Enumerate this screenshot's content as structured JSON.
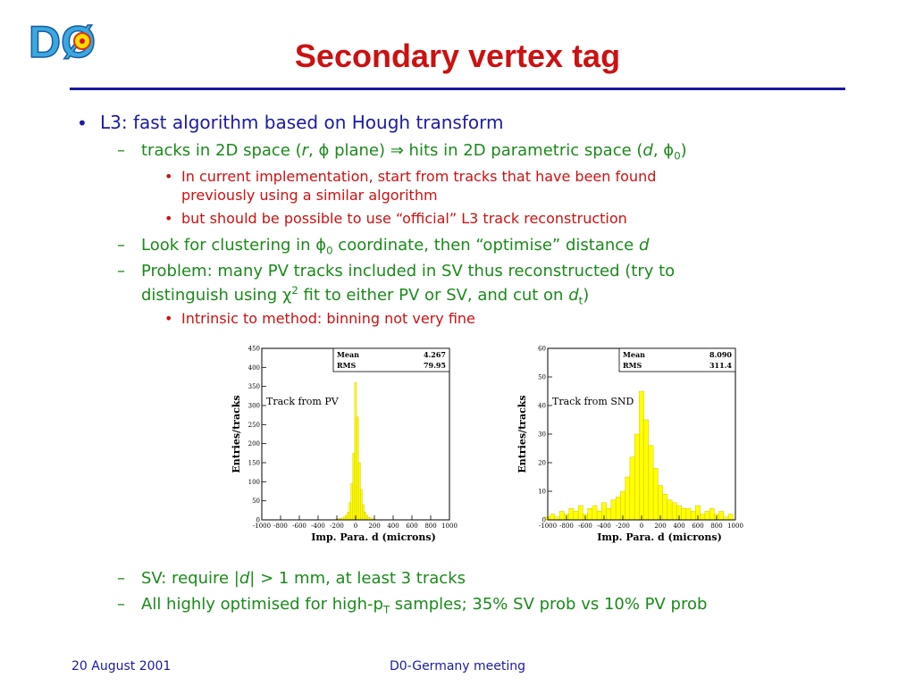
{
  "slide": {
    "title": "Secondary vertex tag",
    "logo_text": "DØ",
    "footer_left": "20 August 2001",
    "footer_center": "D0-Germany meeting"
  },
  "bullets": {
    "b1": "L3: fast algorithm based on Hough transform",
    "b1_1_a": "tracks in 2D space (",
    "b1_1_r": "r",
    "b1_1_b": ", ϕ plane) ⇒ hits in 2D parametric space (",
    "b1_1_d": "d",
    "b1_1_c": ", ϕ",
    "b1_1_sub": "0",
    "b1_1_e": ")",
    "b1_1_1_line1": "In current implementation, start from tracks that have been found",
    "b1_1_1_line2": "previously using a similar algorithm",
    "b1_1_2": "but should be possible to use “official” L3 track reconstruction",
    "b1_2_a": "Look for clustering in ϕ",
    "b1_2_sub": "0",
    "b1_2_b": " coordinate, then “optimise” distance ",
    "b1_2_d": "d",
    "b1_3_line1": "Problem: many PV tracks included in SV thus reconstructed (try to",
    "b1_3_a": "distinguish using χ",
    "b1_3_sup": "2",
    "b1_3_b": " fit to either PV or SV, and cut on ",
    "b1_3_d": "d",
    "b1_3_sub": "t",
    "b1_3_c": ")",
    "b1_3_1": "Intrinsic to method: binning not very fine",
    "b1_4_a": "SV: require |",
    "b1_4_d": "d",
    "b1_4_b": "| > 1 mm, at least 3 tracks",
    "b1_5_a": "All highly optimised for high-p",
    "b1_5_sub": "T",
    "b1_5_b": " samples; 35% SV prob vs 10% PV prob"
  },
  "colors": {
    "title": "#cc1111",
    "level1": "#1a1aa6",
    "level2": "#1a8a1a",
    "level3": "#cc1111",
    "histogram_fill": "#ffff00"
  },
  "chart_data": [
    {
      "type": "bar",
      "annotation": "Track from PV",
      "xlabel": "Imp. Para. d (microns)",
      "ylabel": "Entries/tracks",
      "xlim": [
        -1000,
        1000
      ],
      "ylim": [
        0,
        450
      ],
      "xticks": [
        "-1000",
        "-800",
        "-600",
        "-400",
        "-200",
        "0",
        "200",
        "400",
        "600",
        "800",
        "1000"
      ],
      "yticks": [
        "0",
        "50",
        "100",
        "150",
        "200",
        "250",
        "300",
        "350",
        "400",
        "450"
      ],
      "stats": [
        {
          "label": "Mean",
          "value": "4.267"
        },
        {
          "label": "RMS",
          "value": "79.95"
        }
      ],
      "x": [
        -200,
        -180,
        -160,
        -140,
        -120,
        -100,
        -80,
        -60,
        -40,
        -20,
        0,
        20,
        40,
        60,
        80,
        100,
        120,
        140,
        160,
        180,
        200
      ],
      "values": [
        2,
        3,
        4,
        5,
        8,
        12,
        20,
        45,
        95,
        175,
        360,
        270,
        150,
        80,
        40,
        20,
        12,
        7,
        5,
        3,
        2
      ]
    },
    {
      "type": "bar",
      "annotation": "Track from SND",
      "xlabel": "Imp. Para. d (microns)",
      "ylabel": "Entries/tracks",
      "xlim": [
        -1000,
        1000
      ],
      "ylim": [
        0,
        60
      ],
      "xticks": [
        "-1000",
        "-800",
        "-600",
        "-400",
        "-200",
        "0",
        "200",
        "400",
        "600",
        "800",
        "1000"
      ],
      "yticks": [
        "0",
        "10",
        "20",
        "30",
        "40",
        "50",
        "60"
      ],
      "stats": [
        {
          "label": "Mean",
          "value": "8.090"
        },
        {
          "label": "RMS",
          "value": "311.4"
        }
      ],
      "x": [
        -1000,
        -950,
        -900,
        -850,
        -800,
        -750,
        -700,
        -650,
        -600,
        -550,
        -500,
        -450,
        -400,
        -350,
        -300,
        -250,
        -200,
        -150,
        -100,
        -50,
        0,
        50,
        100,
        150,
        200,
        250,
        300,
        350,
        400,
        450,
        500,
        550,
        600,
        650,
        700,
        750,
        800,
        850,
        900,
        950
      ],
      "values": [
        1,
        2,
        1,
        3,
        2,
        4,
        3,
        5,
        2,
        4,
        5,
        3,
        6,
        4,
        7,
        8,
        10,
        15,
        22,
        30,
        45,
        35,
        26,
        18,
        12,
        9,
        7,
        6,
        5,
        4,
        4,
        3,
        5,
        2,
        3,
        4,
        2,
        3,
        1,
        2
      ]
    }
  ]
}
